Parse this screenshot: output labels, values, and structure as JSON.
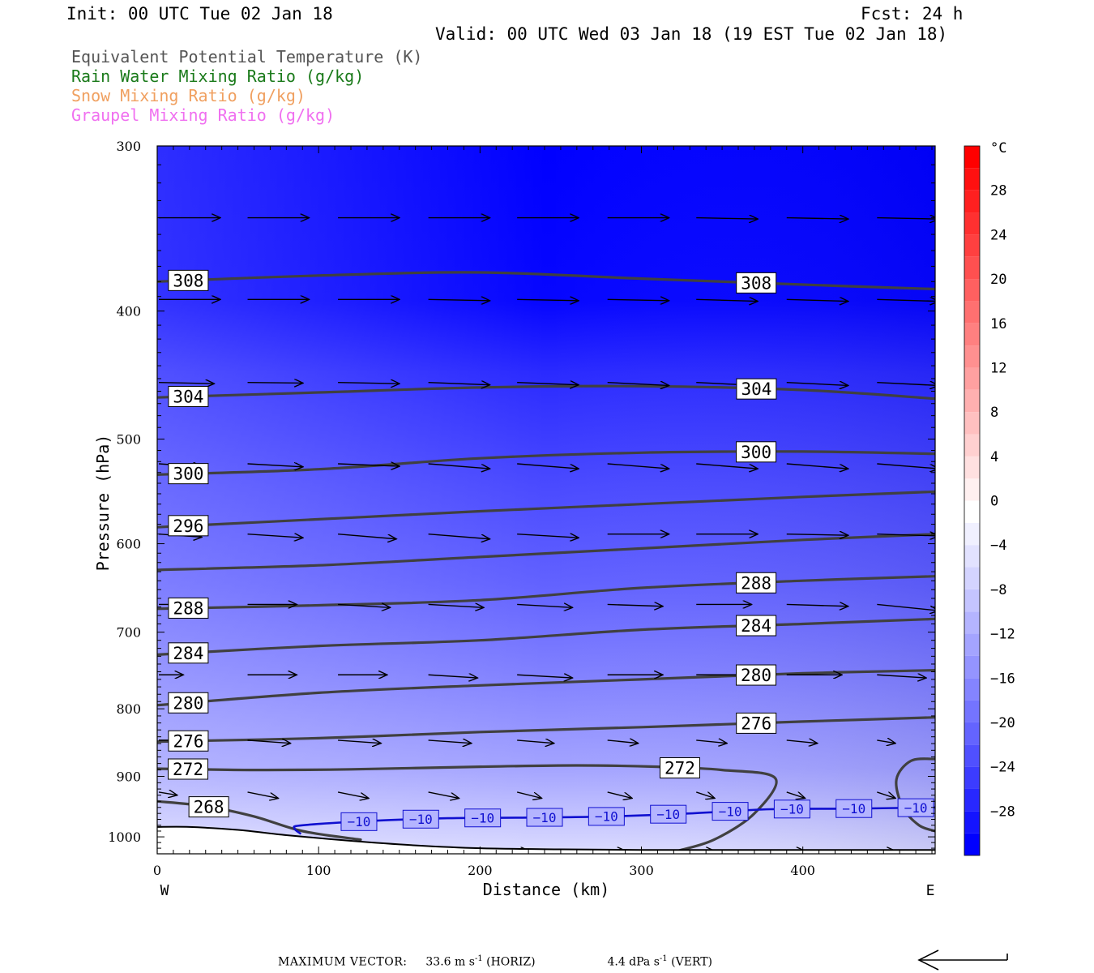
{
  "header": {
    "init": "Init: 00 UTC Tue 02 Jan 18",
    "fcst": "Fcst:   24 h",
    "valid": "Valid: 00 UTC Wed 03 Jan 18 (19 EST Tue 02 Jan 18)"
  },
  "legend": [
    {
      "label": "Equivalent Potential Temperature (K)",
      "color": "#555555"
    },
    {
      "label": "Rain Water Mixing Ratio (g/kg)",
      "color": "#1a7a1a"
    },
    {
      "label": "Snow Mixing Ratio (g/kg)",
      "color": "#f0a060"
    },
    {
      "label": "Graupel Mixing Ratio (g/kg)",
      "color": "#f070f0"
    }
  ],
  "footer": {
    "max_vector_label": "MAXIMUM VECTOR:",
    "horiz": "33.6 m s",
    "horiz_unit": "(HORIZ)",
    "vert": "4.4 dPa s",
    "vert_unit": "(VERT)",
    "exp": "-1"
  },
  "chart_data": {
    "type": "cross-section contour",
    "xlabel": "Distance (km)",
    "ylabel": "Pressure (hPa)",
    "xlim": [
      0,
      482
    ],
    "ylim": [
      1030,
      300
    ],
    "y_scale": "log",
    "x_ticks": [
      "0",
      "100",
      "200",
      "300",
      "400"
    ],
    "y_ticks": [
      "300",
      "400",
      "500",
      "600",
      "700",
      "800",
      "900",
      "1000"
    ],
    "x_end_labels": {
      "left": "W",
      "right": "E"
    },
    "colorbar": {
      "unit": "°C",
      "ticks": [
        "28",
        "24",
        "20",
        "16",
        "12",
        "8",
        "4",
        "0",
        "−4",
        "−8",
        "−12",
        "−16",
        "−20",
        "−24",
        "−28"
      ],
      "levels": [
        -32,
        -30,
        -28,
        -26,
        -24,
        -22,
        -20,
        -18,
        -16,
        -14,
        -12,
        -10,
        -8,
        -6,
        -4,
        -2,
        0,
        2,
        4,
        6,
        8,
        10,
        12,
        14,
        16,
        18,
        20,
        22,
        24,
        26,
        28,
        30,
        32
      ],
      "colors": [
        "#0000ff",
        "#1414ff",
        "#2828ff",
        "#3c3cff",
        "#5050ff",
        "#6464ff",
        "#7474ff",
        "#8484ff",
        "#9494ff",
        "#a4a4ff",
        "#b4b4ff",
        "#c4c4ff",
        "#d4d4ff",
        "#e2e2ff",
        "#f0f0ff",
        "#ffffff",
        "#fff0f0",
        "#ffe0e0",
        "#ffd0d0",
        "#ffc0c0",
        "#ffb0b0",
        "#ffa0a0",
        "#ff9090",
        "#ff8080",
        "#ff7070",
        "#ff6060",
        "#ff5050",
        "#ff4040",
        "#ff3030",
        "#ff2020",
        "#ff1010",
        "#ff0000"
      ]
    },
    "theta_e_contours": [
      {
        "level": 308,
        "label": "308",
        "x": [
          0,
          100,
          200,
          300,
          400,
          482
        ],
        "p": [
          380,
          376,
          374,
          378,
          382,
          385
        ]
      },
      {
        "level": 304,
        "label": "304",
        "x": [
          0,
          100,
          200,
          300,
          400,
          482
        ],
        "p": [
          465,
          461,
          457,
          456,
          459,
          466
        ]
      },
      {
        "level": 300,
        "label": "300",
        "x": [
          0,
          100,
          200,
          300,
          400,
          482
        ],
        "p": [
          532,
          527,
          517,
          512,
          511,
          513
        ]
      },
      {
        "level": 296,
        "label": "296",
        "x": [
          0,
          100,
          200,
          300,
          400,
          482
        ],
        "p": [
          583,
          575,
          567,
          560,
          553,
          548
        ]
      },
      {
        "level": 292,
        "label": "",
        "x": [
          0,
          100,
          200,
          300,
          400,
          482
        ],
        "p": [
          628,
          623,
          614,
          605,
          596,
          590
        ]
      },
      {
        "level": 288,
        "label": "288",
        "x": [
          0,
          100,
          200,
          300,
          400,
          482
        ],
        "p": [
          672,
          668,
          662,
          648,
          640,
          635
        ]
      },
      {
        "level": 284,
        "label": "284",
        "x": [
          0,
          100,
          200,
          300,
          400,
          482
        ],
        "p": [
          728,
          717,
          710,
          697,
          690,
          684
        ]
      },
      {
        "level": 280,
        "label": "280",
        "x": [
          0,
          100,
          200,
          300,
          400,
          482
        ],
        "p": [
          795,
          778,
          768,
          760,
          752,
          748
        ]
      },
      {
        "level": 276,
        "label": "276",
        "x": [
          0,
          100,
          200,
          300,
          400,
          482
        ],
        "p": [
          847,
          842,
          833,
          826,
          818,
          812
        ]
      },
      {
        "level": 272,
        "label": "272",
        "x": [
          0,
          60,
          120,
          200,
          260,
          310,
          350,
          383,
          370,
          345,
          322
        ],
        "p": [
          888,
          890,
          889,
          885,
          883,
          885,
          890,
          903,
          960,
          1005,
          1025
        ]
      },
      {
        "level": 272,
        "label": "",
        "x": [
          482,
          467,
          458,
          462,
          472,
          482
        ],
        "p": [
          873,
          876,
          905,
          950,
          980,
          990
        ]
      },
      {
        "level": 268,
        "label": "268",
        "x": [
          0,
          30,
          60,
          90,
          126
        ],
        "p": [
          940,
          948,
          965,
          990,
          1005
        ]
      }
    ],
    "isotherm_minus10": {
      "label": "−10",
      "x": [
        89,
        85,
        90,
        130,
        180,
        230,
        280,
        330,
        380,
        430,
        482
      ],
      "p": [
        995,
        985,
        980,
        973,
        968,
        967,
        965,
        960,
        953,
        952,
        950
      ]
    },
    "vector_rows": [
      {
        "p": 340,
        "x": [
          0,
          55,
          111,
          167,
          222,
          278,
          333,
          389,
          445
        ],
        "u": [
          1,
          1,
          1,
          1,
          1,
          1,
          1,
          1,
          1
        ],
        "v": [
          0,
          0,
          0,
          0,
          0,
          0,
          0.02,
          0.02,
          0.02
        ]
      },
      {
        "p": 392,
        "x": [
          0,
          55,
          111,
          167,
          222,
          278,
          333,
          389,
          445
        ],
        "u": [
          1,
          1,
          1,
          1,
          1,
          1,
          1,
          1,
          1
        ],
        "v": [
          0,
          0,
          0,
          0.02,
          0.02,
          0.02,
          0.03,
          0.03,
          0.03
        ]
      },
      {
        "p": 453,
        "x": [
          0,
          55,
          111,
          167,
          222,
          278,
          333,
          389,
          445
        ],
        "u": [
          0.9,
          0.9,
          1,
          1,
          1,
          1,
          1,
          1,
          1
        ],
        "v": [
          0.02,
          0.01,
          0.02,
          0.04,
          0.04,
          0.05,
          0.05,
          0.05,
          0.05
        ]
      },
      {
        "p": 522,
        "x": [
          0,
          55,
          111,
          167,
          222,
          278,
          333,
          389,
          445
        ],
        "u": [
          0.7,
          0.9,
          1,
          1,
          1,
          1,
          1,
          1,
          1
        ],
        "v": [
          0.05,
          0.05,
          0.04,
          0.08,
          0.08,
          0.08,
          0.08,
          0.08,
          0.08
        ]
      },
      {
        "p": 590,
        "x": [
          0,
          55,
          111,
          167,
          222,
          278,
          333,
          389,
          445
        ],
        "u": [
          0.7,
          0.9,
          0.95,
          1,
          1,
          1,
          1,
          1,
          1
        ],
        "v": [
          0.05,
          0.06,
          0.08,
          0.08,
          0.06,
          0,
          0,
          0.02,
          0.03
        ]
      },
      {
        "p": 667,
        "x": [
          0,
          55,
          111,
          167,
          222,
          278,
          333,
          389,
          445
        ],
        "u": [
          0.4,
          0.8,
          0.85,
          0.9,
          0.9,
          0.9,
          0.9,
          1,
          1
        ],
        "v": [
          0,
          0,
          0.05,
          0.05,
          0.05,
          0.03,
          0,
          0.03,
          0.1
        ]
      },
      {
        "p": 754,
        "x": [
          0,
          55,
          111,
          167,
          222,
          278,
          333,
          389,
          445
        ],
        "u": [
          0.4,
          0.8,
          0.8,
          0.8,
          0.9,
          0.9,
          0.9,
          0.9,
          0.8
        ],
        "v": [
          0,
          0,
          0,
          0.05,
          0.05,
          0,
          0,
          0,
          0.05
        ]
      },
      {
        "p": 845,
        "x": [
          0,
          55,
          111,
          167,
          222,
          278,
          333,
          389,
          445
        ],
        "u": [
          0.4,
          0.7,
          0.7,
          0.7,
          0.6,
          0.5,
          0.5,
          0.5,
          0.3
        ],
        "v": [
          0,
          0.05,
          0.05,
          0.05,
          0.05,
          0.05,
          0.05,
          0.05,
          0.05
        ]
      },
      {
        "p": 925,
        "x": [
          0,
          55,
          111,
          167,
          222,
          278,
          333,
          389,
          445
        ],
        "u": [
          0.3,
          0.5,
          0.5,
          0.5,
          0.4,
          0.4,
          0.3,
          0.3,
          0.3
        ],
        "v": [
          0.05,
          0.1,
          0.1,
          0.1,
          0.1,
          0.1,
          0.1,
          0.1,
          0.1
        ]
      },
      {
        "p": 1025,
        "x": [
          0,
          55,
          111,
          167,
          222,
          278,
          333,
          389,
          445
        ],
        "u": [
          0.1,
          0.2,
          0.2,
          0.2,
          0.2,
          0.3,
          0.3,
          0.3,
          0.3
        ],
        "v": [
          0,
          0,
          0,
          0,
          0,
          0,
          0,
          0,
          0
        ]
      }
    ],
    "terrain": {
      "x": [
        0,
        20,
        50,
        80,
        120,
        160,
        200,
        250,
        300,
        350,
        400,
        450,
        482
      ],
      "p": [
        983,
        983,
        988,
        997,
        1007,
        1015,
        1020,
        1022,
        1023,
        1023,
        1023,
        1023,
        1023
      ]
    }
  }
}
